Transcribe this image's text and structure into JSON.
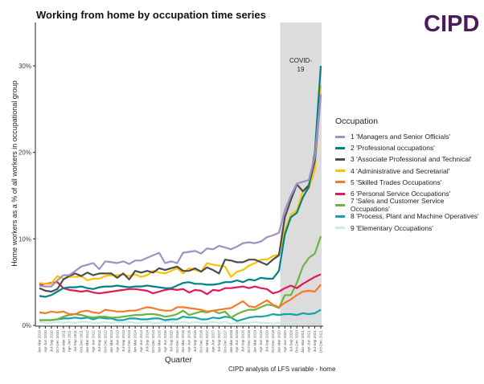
{
  "title": "Working from home by occupation time series",
  "logo": "CIPD",
  "caption": "CIPD analysis of LFS variable - home",
  "chart_data": {
    "type": "line",
    "title": "Working from home by occupation time series",
    "xlabel": "Quarter",
    "ylabel": "Home workers as a % of all workers in occupational group",
    "ylim": [
      0,
      30
    ],
    "yticks": [
      "0%",
      "10%",
      "20%",
      "30%"
    ],
    "ytick_values": [
      0,
      10,
      20,
      30
    ],
    "legend_title": "Occupation",
    "legend_position": "right",
    "annotation": {
      "text": "COVID-19",
      "line1": "COVID-",
      "line2": "19",
      "from_index": 40.5,
      "to_index": 47
    },
    "x": [
      "Jan-Mar 2010",
      "Apr-Jun 2010",
      "Jul-Sep 2010",
      "Oct-Dec 2010",
      "Jan-Mar 2011",
      "Apr-Jun 2011",
      "Jul-Sep 2011",
      "Oct-Dec 2011",
      "Jan-Mar 2012",
      "Apr-Jun 2012",
      "Jul-Sep 2012",
      "Oct-Dec 2012",
      "Jan-Mar 2013",
      "Apr-Jun 2013",
      "Jul-Sep 2013",
      "Oct-Dec 2013",
      "Jan-Mar 2014",
      "Apr-Jun 2014",
      "Jul-Sep 2014",
      "Oct-Dec 2014",
      "Jan-Mar 2015",
      "Apr-Jun 2015",
      "Jul-Sep 2015",
      "Oct-Dec 2015",
      "Jan-Mar 2016",
      "Apr-Jun 2016",
      "Jul-Sep 2016",
      "Oct-Dec 2016",
      "Jan-Mar 2017",
      "Apr-Jun 2017",
      "Jul-Sep 2017",
      "Oct-Dec 2017",
      "Jan-Mar 2018",
      "Apr-Jun 2018",
      "Jul-Sep 2018",
      "Oct-Dec 2018",
      "Jan-Mar 2019",
      "Apr-Jun 2019",
      "Jul-Sep 2019",
      "Oct-Dec 2019",
      "Jan-Mar 2020",
      "Apr-Jun 2020",
      "Jul-Sep 2020",
      "Oct-Dec 2020",
      "Jan-Mar 2021",
      "Apr-Jun 2021",
      "Jul-Sep 2021",
      "Oct-Dec 2021"
    ],
    "series": [
      {
        "name": "1 'Managers and Senior Officials'",
        "color": "#a38fc4",
        "values": [
          4.6,
          4.5,
          4.5,
          5.2,
          5.8,
          5.8,
          6.3,
          6.8,
          7.0,
          7.2,
          6.5,
          7.4,
          7.3,
          7.2,
          7.4,
          7.1,
          7.5,
          7.5,
          7.8,
          8.1,
          8.4,
          7.2,
          7.4,
          7.2,
          8.4,
          8.5,
          8.6,
          8.3,
          8.9,
          8.8,
          9.2,
          9.0,
          8.8,
          9.1,
          9.5,
          9.6,
          9.5,
          9.7,
          10.2,
          10.4,
          10.7,
          13.3,
          15.0,
          16.4,
          16.6,
          16.8,
          19.5,
          26.7
        ]
      },
      {
        "name": "2 'Professional occupations'",
        "color": "#00818a",
        "values": [
          3.4,
          3.3,
          3.5,
          3.9,
          4.3,
          4.4,
          4.4,
          4.5,
          4.3,
          4.2,
          4.4,
          4.5,
          4.5,
          4.6,
          4.5,
          4.4,
          4.5,
          4.5,
          4.6,
          4.5,
          4.4,
          4.3,
          4.3,
          4.6,
          4.9,
          5.0,
          4.8,
          4.8,
          4.7,
          4.7,
          4.8,
          5.0,
          5.0,
          5.2,
          5.0,
          5.3,
          5.2,
          5.5,
          5.4,
          5.4,
          6.3,
          10.5,
          12.5,
          13.0,
          14.8,
          16.0,
          20.0,
          30.0
        ]
      },
      {
        "name": "3 'Associate Professional and Technical'",
        "color": "#4d4d4d",
        "values": [
          4.3,
          4.0,
          3.9,
          4.2,
          5.3,
          5.7,
          6.0,
          5.7,
          6.1,
          5.8,
          6.0,
          6.0,
          6.0,
          5.5,
          6.0,
          5.3,
          6.3,
          6.1,
          6.3,
          6.1,
          6.6,
          6.4,
          6.6,
          6.8,
          6.3,
          6.3,
          6.6,
          6.2,
          6.7,
          6.4,
          6.0,
          7.6,
          7.5,
          7.3,
          7.3,
          7.6,
          7.6,
          7.3,
          7.0,
          7.6,
          8.1,
          12.5,
          14.5,
          16.3,
          15.5,
          16.2,
          19.0,
          26.7
        ]
      },
      {
        "name": "4 'Administrative and Secretarial'",
        "color": "#ffc000",
        "values": [
          4.9,
          4.8,
          4.8,
          5.7,
          5.4,
          5.6,
          5.6,
          5.7,
          5.2,
          5.4,
          5.4,
          5.7,
          5.8,
          5.8,
          5.9,
          5.7,
          5.9,
          5.6,
          5.8,
          6.3,
          6.1,
          6.0,
          6.3,
          6.6,
          6.0,
          6.6,
          6.4,
          6.2,
          7.2,
          7.0,
          6.9,
          6.8,
          5.6,
          6.2,
          6.4,
          6.9,
          7.2,
          7.6,
          7.6,
          8.0,
          8.2,
          11.0,
          12.8,
          13.3,
          15.5,
          15.8,
          18.0,
          27.8
        ]
      },
      {
        "name": "5 'Skilled Trades Occupations'",
        "color": "#f47b2a",
        "values": [
          1.5,
          1.4,
          1.6,
          1.5,
          1.6,
          1.3,
          1.3,
          1.6,
          1.7,
          1.5,
          1.4,
          1.8,
          1.7,
          1.6,
          1.6,
          1.7,
          1.7,
          1.9,
          2.1,
          2.0,
          1.8,
          1.7,
          1.7,
          2.1,
          2.1,
          2.0,
          1.9,
          1.8,
          1.6,
          1.7,
          1.8,
          1.9,
          2.0,
          2.4,
          2.8,
          2.2,
          2.1,
          2.5,
          2.9,
          2.4,
          2.1,
          2.6,
          3.0,
          3.5,
          3.9,
          4.0,
          3.9,
          4.7
        ]
      },
      {
        "name": "6 'Personal Service Occupations'",
        "color": "#e0195a",
        "values": [
          4.7,
          4.8,
          4.9,
          5.0,
          4.3,
          4.1,
          4.0,
          3.9,
          4.0,
          3.8,
          3.7,
          3.8,
          3.9,
          4.0,
          4.1,
          4.2,
          4.2,
          4.1,
          4.0,
          3.7,
          3.9,
          4.1,
          4.2,
          4.1,
          4.2,
          3.8,
          4.1,
          4.0,
          3.6,
          4.1,
          4.0,
          4.3,
          4.3,
          4.4,
          4.5,
          4.3,
          4.5,
          4.3,
          4.2,
          3.7,
          3.9,
          4.3,
          4.6,
          4.3,
          4.8,
          5.2,
          5.6,
          5.9
        ]
      },
      {
        "name": "7 'Sales and Customer Service Occupations'",
        "color": "#6cb33f",
        "values": [
          0.6,
          0.6,
          0.6,
          0.7,
          1.0,
          1.2,
          1.3,
          1.2,
          1.0,
          0.9,
          1.0,
          1.0,
          0.9,
          0.9,
          1.0,
          1.1,
          1.2,
          1.2,
          1.3,
          1.3,
          1.2,
          1.0,
          1.1,
          1.3,
          1.7,
          1.2,
          1.4,
          1.6,
          1.5,
          1.7,
          1.4,
          1.6,
          0.9,
          1.3,
          1.6,
          1.8,
          1.8,
          2.1,
          2.4,
          2.3,
          2.0,
          3.5,
          3.5,
          4.9,
          6.8,
          7.8,
          8.3,
          10.3
        ]
      },
      {
        "name": "8 'Process, Plant and Machine Operatives'",
        "color": "#14a3a8",
        "values": [
          0.6,
          0.6,
          0.6,
          0.7,
          0.8,
          0.8,
          0.9,
          0.8,
          0.9,
          0.7,
          0.9,
          0.8,
          0.8,
          0.6,
          0.6,
          0.8,
          0.8,
          0.7,
          0.7,
          0.8,
          0.8,
          0.6,
          0.7,
          0.7,
          1.0,
          0.9,
          0.9,
          0.7,
          0.7,
          0.9,
          0.8,
          1.0,
          0.9,
          0.5,
          0.7,
          0.9,
          1.0,
          1.0,
          1.1,
          1.3,
          1.2,
          1.3,
          1.3,
          1.2,
          1.4,
          1.3,
          1.4,
          1.8
        ]
      },
      {
        "name": "9 'Elementary Occupations'",
        "color": "#cde8e8",
        "values": [
          0.4,
          0.3,
          0.3,
          0.4,
          0.3,
          0.4,
          0.3,
          0.4,
          0.4,
          0.3,
          0.3,
          0.4,
          0.3,
          0.4,
          0.3,
          0.4,
          0.3,
          0.3,
          0.4,
          0.3,
          0.3,
          0.4,
          0.4,
          0.3,
          0.4,
          0.3,
          0.4,
          0.3,
          0.3,
          0.4,
          0.3,
          0.4,
          0.2,
          0.3,
          0.3,
          0.3,
          0.4,
          0.3,
          0.3,
          0.2,
          0.3,
          0.3,
          0.4,
          0.5,
          0.5,
          0.6,
          0.6,
          0.8
        ]
      }
    ]
  }
}
